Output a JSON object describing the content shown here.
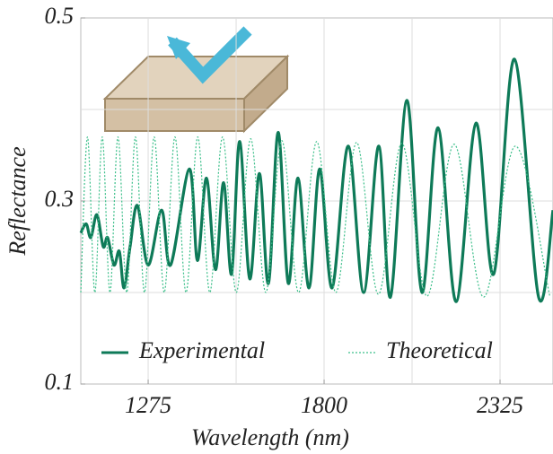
{
  "chart_data": {
    "type": "line",
    "xlabel": "Wavelength (nm)",
    "ylabel": "Reflectance",
    "xlim": [
      1074,
      2483
    ],
    "ylim": [
      0.1,
      0.5
    ],
    "xticks": [
      1275,
      1800,
      2325
    ],
    "yticks": [
      0.1,
      0.3,
      0.5
    ],
    "xgrid": [
      1275,
      1537.5,
      1800,
      2062.5,
      2325
    ],
    "ygrid": [
      0.2,
      0.3,
      0.4
    ],
    "grid": true,
    "legend": "lower",
    "series": [
      {
        "name": "Experimental",
        "color": "#0e7a58",
        "style": "solid",
        "x": [
          1074,
          1090,
          1104,
          1122,
          1141,
          1154,
          1173,
          1189,
          1203,
          1221,
          1243,
          1275,
          1315,
          1342,
          1398,
          1422,
          1449,
          1476,
          1500,
          1524,
          1548,
          1578,
          1607,
          1634,
          1663,
          1693,
          1722,
          1755,
          1787,
          1824,
          1872,
          1918,
          1963,
          1998,
          2047,
          2092,
          2140,
          2194,
          2253,
          2306,
          2368,
          2440,
          2483
        ],
        "values": [
          0.265,
          0.275,
          0.26,
          0.285,
          0.25,
          0.26,
          0.23,
          0.245,
          0.205,
          0.25,
          0.295,
          0.23,
          0.29,
          0.23,
          0.335,
          0.235,
          0.325,
          0.225,
          0.32,
          0.22,
          0.365,
          0.215,
          0.33,
          0.21,
          0.375,
          0.21,
          0.325,
          0.205,
          0.335,
          0.205,
          0.36,
          0.2,
          0.36,
          0.195,
          0.41,
          0.2,
          0.38,
          0.19,
          0.385,
          0.22,
          0.455,
          0.195,
          0.29
        ]
      },
      {
        "name": "Theoretical",
        "color": "#3cbf8a",
        "style": "dotted",
        "x": [
          1074,
          1094,
          1116,
          1138,
          1161,
          1185,
          1211,
          1237,
          1264,
          1293,
          1323,
          1355,
          1388,
          1423,
          1459,
          1497,
          1538,
          1581,
          1626,
          1674,
          1724,
          1778,
          1835,
          1897,
          1962,
          2032,
          2107,
          2188,
          2276,
          2371,
          2474
        ],
        "values": [
          0.2,
          0.37,
          0.2,
          0.37,
          0.2,
          0.37,
          0.2,
          0.37,
          0.2,
          0.37,
          0.2,
          0.37,
          0.2,
          0.37,
          0.2,
          0.37,
          0.2,
          0.368,
          0.2,
          0.366,
          0.2,
          0.365,
          0.2,
          0.364,
          0.198,
          0.363,
          0.196,
          0.362,
          0.195,
          0.36,
          0.195
        ]
      }
    ]
  }
}
